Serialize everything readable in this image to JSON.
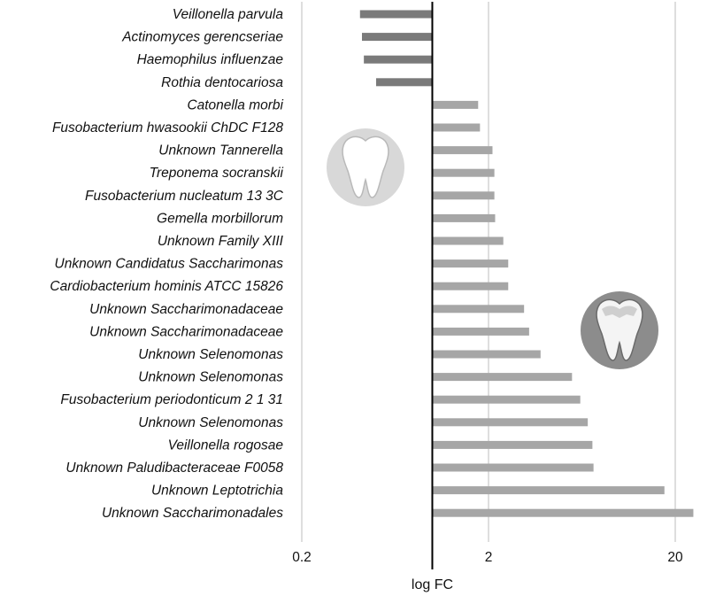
{
  "chart_data": {
    "type": "bar",
    "orientation": "horizontal",
    "x_scale": "log",
    "xlabel": "log FC",
    "x_ticks": [
      0.2,
      2,
      20
    ],
    "x_tick_labels": [
      "0.2",
      "2",
      "20"
    ],
    "xlim": [
      0.2,
      25
    ],
    "grid": "vertical",
    "categories": [
      "Veillonella parvula",
      "Actinomyces gerencseriae",
      "Haemophilus influenzae",
      "Rothia dentocariosa",
      "Catonella morbi",
      "Fusobacterium hwasookii ChDC F128",
      "Unknown Tannerella",
      "Treponema socranskii",
      "Fusobacterium nucleatum 13 3C",
      "Gemella morbillorum",
      "Unknown Family XIII",
      "Unknown Candidatus Saccharimonas",
      "Cardiobacterium hominis ATCC 15826",
      "Unknown Saccharimonadaceae",
      "Unknown Saccharimonadaceae",
      "Unknown Selenomonas",
      "Unknown Selenomonas",
      "Fusobacterium periodonticum 2 1 31",
      "Unknown Selenomonas",
      "Veillonella rogosae",
      "Unknown Paludibacteraceae F0058",
      "Unknown Leptotrichia",
      "Unknown Saccharimonadales"
    ],
    "values": [
      0.41,
      0.42,
      0.43,
      0.5,
      1.76,
      1.8,
      2.1,
      2.15,
      2.15,
      2.17,
      2.4,
      2.55,
      2.55,
      3.1,
      3.3,
      3.8,
      5.6,
      6.2,
      6.8,
      7.2,
      7.3,
      17.5,
      25.0
    ],
    "colors": {
      "negative": "#7a7a7a",
      "positive": "#a6a6a6",
      "grid": "#d3d3d3",
      "baseline": "#000000"
    }
  },
  "icons": [
    "healthy-tooth-icon",
    "diseased-tooth-icon"
  ]
}
